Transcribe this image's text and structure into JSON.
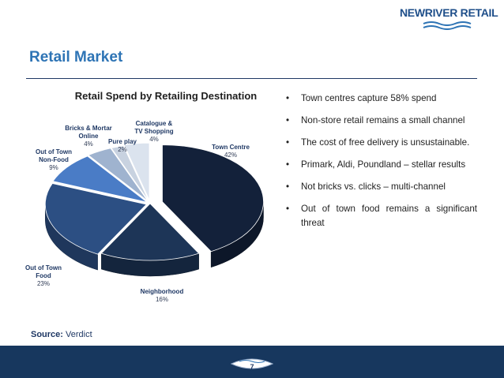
{
  "brand": {
    "logo_text": "NEWRIVER RETAIL"
  },
  "slide": {
    "title": "Retail Market",
    "page_number": "7"
  },
  "source": {
    "label": "Source:",
    "value": "Verdict"
  },
  "bullets": [
    "Town centres capture 58% spend",
    "Non-store retail remains a small channel",
    "The cost of free delivery is unsustainable.",
    "Primark, Aldi, Poundland – stellar results",
    "Not bricks vs. clicks – multi-channel",
    "Out of town food remains a significant threat"
  ],
  "bullet_symbol": "•",
  "chart_data": {
    "type": "pie",
    "title": "Retail Spend by Retailing Destination",
    "three_d": true,
    "slices": [
      {
        "name": "Town Centre",
        "value": 42,
        "label": "42%",
        "color": "#13213a"
      },
      {
        "name": "Neighborhood",
        "value": 16,
        "label": "16%",
        "color": "#1d3557"
      },
      {
        "name": "Out of Town Food",
        "value": 23,
        "label": "23%",
        "color": "#2c4f83"
      },
      {
        "name": "Out of Town Non-Food",
        "value": 9,
        "label": "9%",
        "color": "#4a7cc6"
      },
      {
        "name": "Bricks & Mortar Online",
        "value": 4,
        "label": "4%",
        "color": "#9fb3cf"
      },
      {
        "name": "Pure play",
        "value": 2,
        "label": "2%",
        "color": "#c8d2e0"
      },
      {
        "name": "Catalogue & TV Shopping",
        "value": 4,
        "label": "4%",
        "color": "#dbe3ee"
      }
    ],
    "label_lines": [
      [
        "Town Centre"
      ],
      [
        "Neighborhood"
      ],
      [
        "Out of Town",
        "Food"
      ],
      [
        "Out of Town",
        "Non-Food"
      ],
      [
        "Bricks & Mortar",
        "Online"
      ],
      [
        "Pure play"
      ],
      [
        "Catalogue &",
        "TV Shopping"
      ]
    ]
  }
}
